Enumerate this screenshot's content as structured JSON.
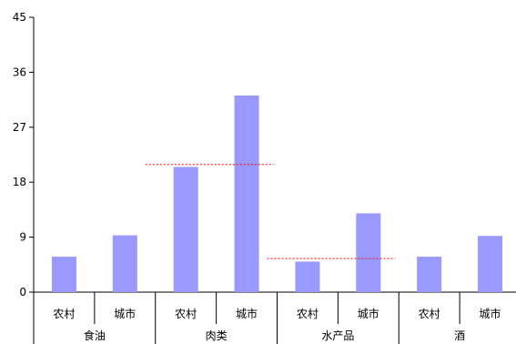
{
  "chart_data": {
    "type": "bar",
    "groups": [
      "食油",
      "肉类",
      "水产品",
      "酒"
    ],
    "subcategories": [
      "农村",
      "城市"
    ],
    "values": [
      [
        5.8,
        9.3
      ],
      [
        20.5,
        32.2
      ],
      [
        5.0,
        12.9
      ],
      [
        5.8,
        9.2
      ]
    ],
    "reference_lines": [
      {
        "group": "肉类",
        "value": 20.9
      },
      {
        "group": "水产品",
        "value": 5.5
      }
    ],
    "ylim": [
      0,
      45
    ],
    "yticks": [
      0,
      9,
      18,
      27,
      36,
      45
    ],
    "bar_color": "#9999ff",
    "reference_line_color": "#ff0000",
    "legend": "none",
    "grid": false
  }
}
